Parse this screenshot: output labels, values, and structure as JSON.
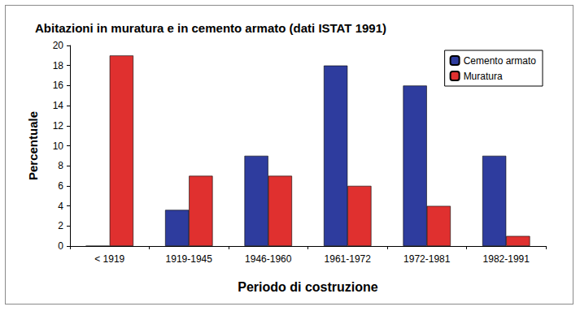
{
  "chart_data": {
    "type": "bar",
    "title": "Abitazioni in muratura e in cemento armato (dati ISTAT 1991)",
    "xlabel": "Periodo di costruzione",
    "ylabel": "Percentuale",
    "categories": [
      "< 1919",
      "1919-1945",
      "1946-1960",
      "1961-1972",
      "1972-1981",
      "1982-1991"
    ],
    "series": [
      {
        "name": "Cemento armato",
        "color": "#2e3c9e",
        "values": [
          0,
          3.6,
          9,
          18,
          16,
          9
        ]
      },
      {
        "name": "Muratura",
        "color": "#e0302f",
        "values": [
          19,
          7,
          7,
          6,
          4,
          1
        ]
      }
    ],
    "ylim": [
      0,
      20
    ],
    "yticks": [
      0,
      2,
      4,
      6,
      8,
      10,
      12,
      14,
      16,
      18,
      20
    ],
    "grid": false,
    "legend": "upper right"
  }
}
